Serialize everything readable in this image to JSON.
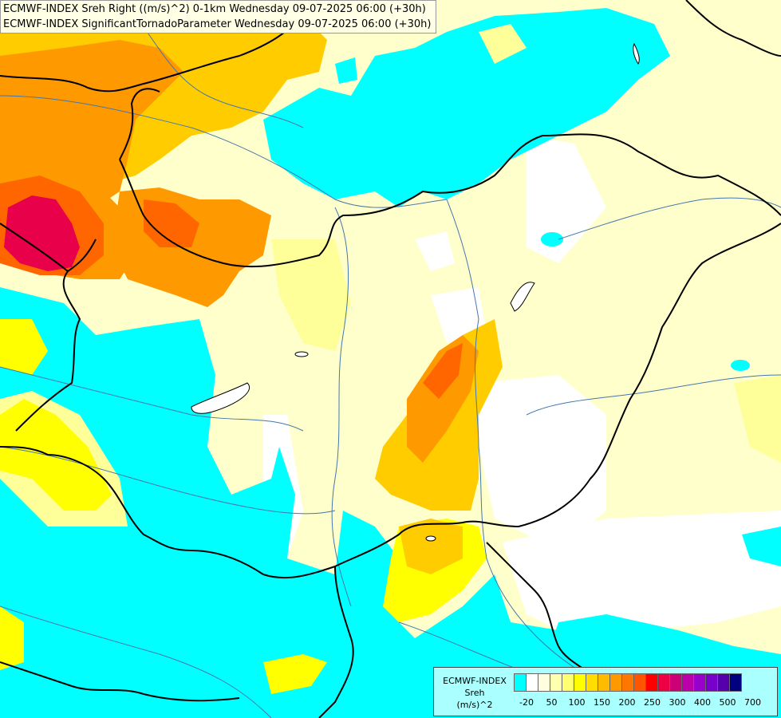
{
  "title": {
    "line1": "ECMWF-INDEX Sreh Right ((m/s)^2) 0-1km Wednesday 09-07-2025 06:00 (+30h)",
    "line2": "ECMWF-INDEX SignificantTornadoParameter Wednesday 09-07-2025 06:00 (+30h)"
  },
  "legend": {
    "source": "ECMWF-INDEX",
    "variable": "Sreh",
    "unit": "(m/s)^2",
    "tick_labels": [
      "-20",
      "50",
      "100",
      "150",
      "200",
      "250",
      "300",
      "400",
      "500",
      "700"
    ],
    "colors": [
      "#00ffff",
      "#ffffff",
      "#ffffe0",
      "#ffffb0",
      "#ffff70",
      "#ffff00",
      "#ffdd00",
      "#ffbb00",
      "#ff9900",
      "#ff7700",
      "#ff5500",
      "#ff0000",
      "#ee0044",
      "#cc0077",
      "#bb00aa",
      "#9900cc",
      "#7700cc",
      "#5500aa",
      "#000080"
    ]
  },
  "colors": {
    "cyan": "#00ffff",
    "white": "#ffffff",
    "pale_yellow": "#ffffcc",
    "light_yellow": "#ffff99",
    "yellow": "#ffff00",
    "gold": "#ffcc00",
    "orange": "#ff9900",
    "dark_orange": "#ff6600",
    "crimson": "#e8004a",
    "border": "#000000",
    "river": "#4477aa"
  }
}
